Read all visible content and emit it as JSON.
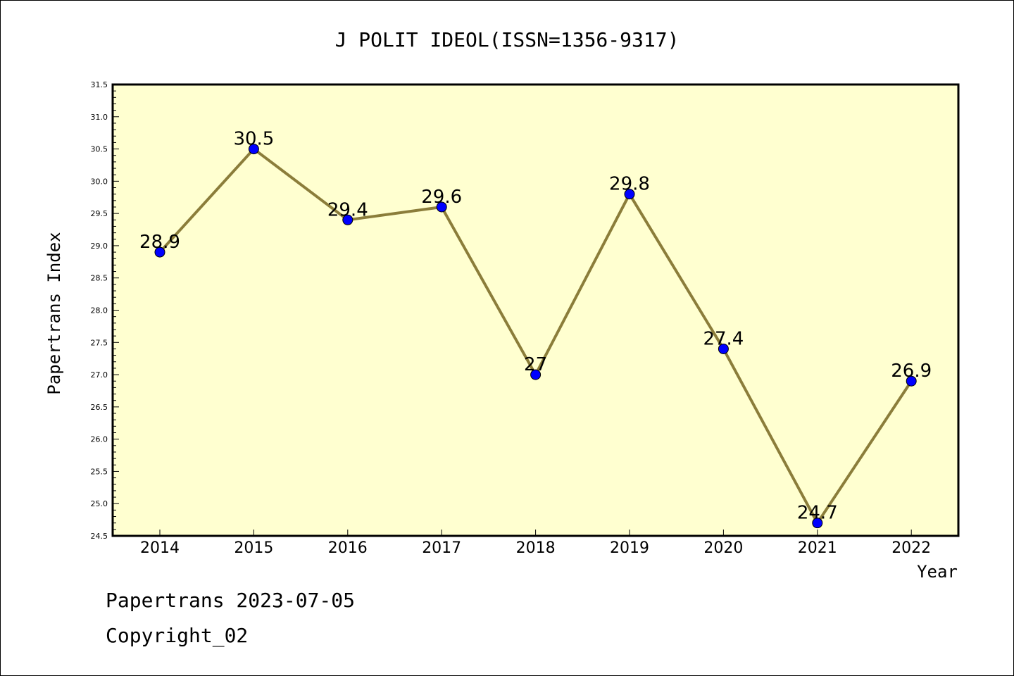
{
  "chart_data": {
    "type": "line",
    "title": "J POLIT IDEOL(ISSN=1356-9317)",
    "xlabel": "Year",
    "ylabel": "Papertrans Index",
    "categories": [
      "2014",
      "2015",
      "2016",
      "2017",
      "2018",
      "2019",
      "2020",
      "2021",
      "2022"
    ],
    "series": [
      {
        "values": [
          28.9,
          30.5,
          29.4,
          29.6,
          27.0,
          29.8,
          27.4,
          24.7,
          26.9
        ],
        "data_labels": [
          "28.9",
          "30.5",
          "29.4",
          "29.6",
          "27",
          "29.8",
          "27.4",
          "24.7",
          "26.9"
        ]
      }
    ],
    "ylim": [
      24.5,
      31.5
    ],
    "yticks": [
      "24.5",
      "25.0",
      "25.5",
      "26.0",
      "26.5",
      "27.0",
      "27.5",
      "28.0",
      "28.5",
      "29.0",
      "29.5",
      "30.0",
      "30.5",
      "31.0",
      "31.5"
    ],
    "legend": "none",
    "grid": false,
    "colors": {
      "plot_background": "#ffffd0",
      "line": "#8b7d3a",
      "marker": "#0000ff"
    }
  },
  "footer": {
    "line1": "Papertrans 2023-07-05",
    "line2": "Copyright_02"
  }
}
